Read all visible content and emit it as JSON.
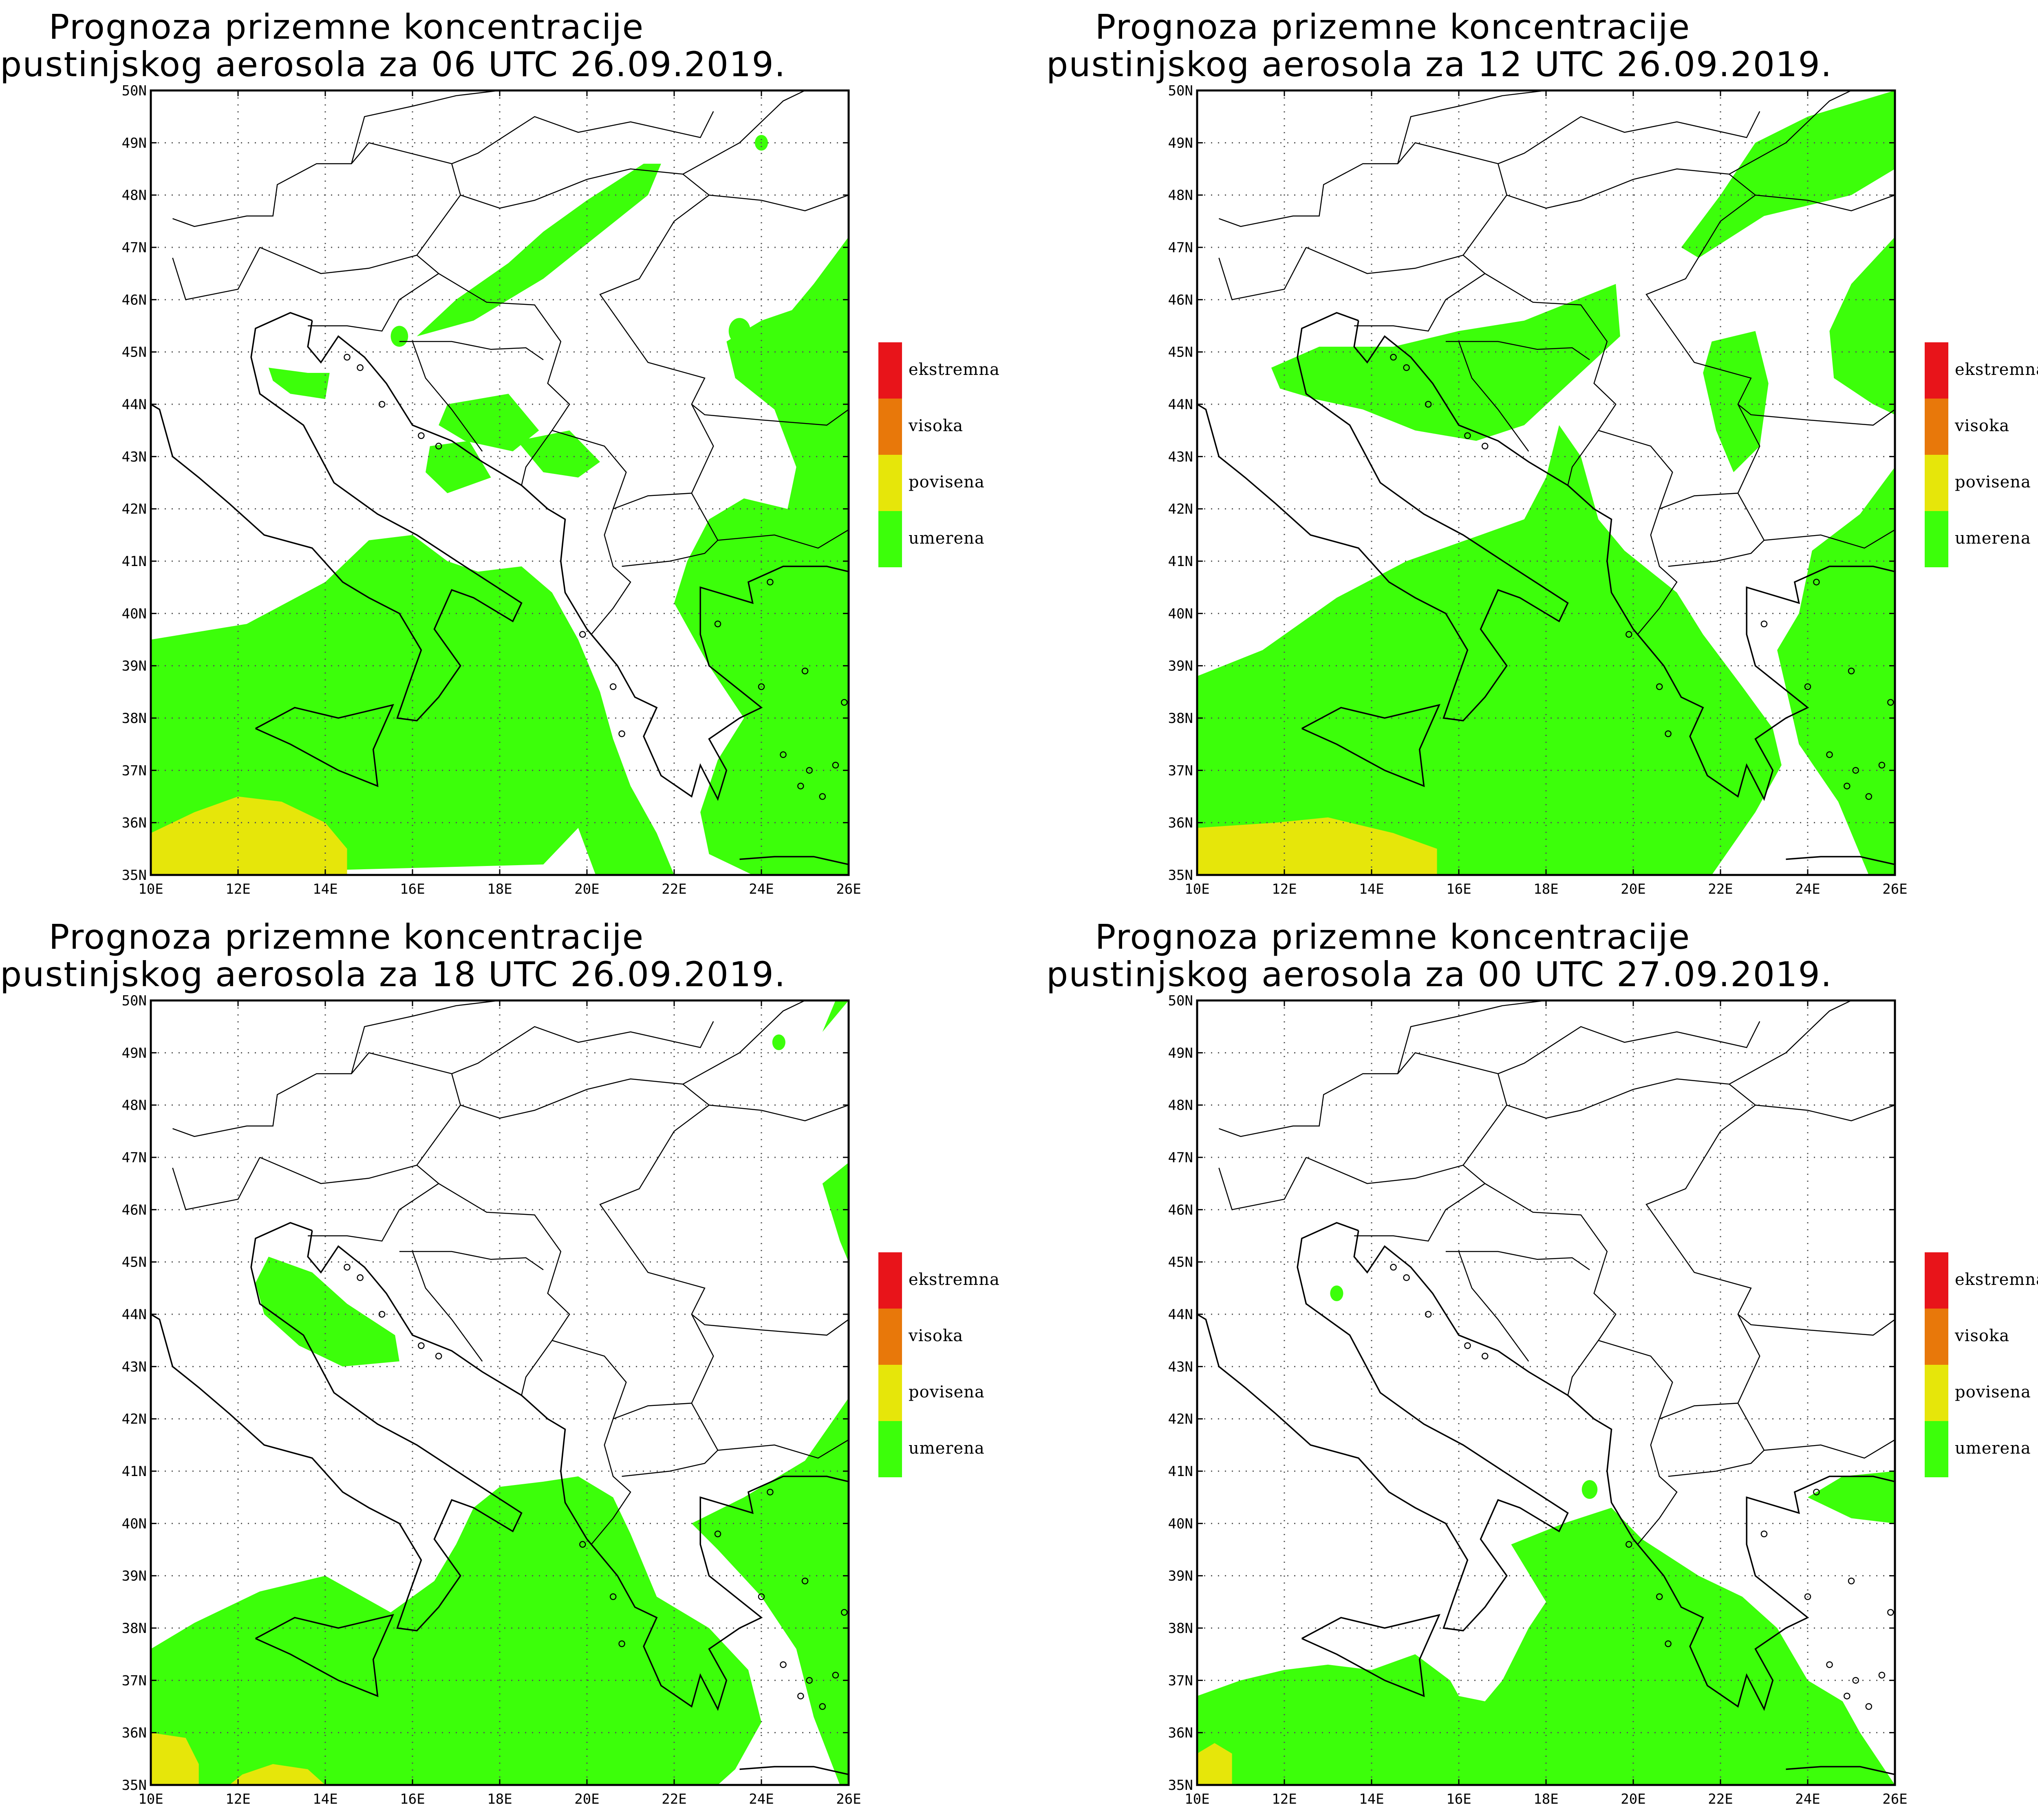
{
  "panels": [
    {
      "id": "p1",
      "title_line1": "Prognoza prizemne koncentracije",
      "title_line2": "pustinjskog aerosola za 06 UTC 26.09.2019."
    },
    {
      "id": "p2",
      "title_line1": "Prognoza prizemne koncentracije",
      "title_line2": "pustinjskog aerosola za 12 UTC 26.09.2019."
    },
    {
      "id": "p3",
      "title_line1": "Prognoza prizemne koncentracije",
      "title_line2": "pustinjskog aerosola za 18 UTC 26.09.2019."
    },
    {
      "id": "p4",
      "title_line1": "Prognoza prizemne koncentracije",
      "title_line2": "pustinjskog aerosola za 00 UTC 27.09.2019."
    }
  ],
  "axes": {
    "lat_labels": [
      "35N",
      "36N",
      "37N",
      "38N",
      "39N",
      "40N",
      "41N",
      "42N",
      "43N",
      "44N",
      "45N",
      "46N",
      "47N",
      "48N",
      "49N",
      "50N"
    ],
    "lon_labels": [
      "10E",
      "12E",
      "14E",
      "16E",
      "18E",
      "20E",
      "22E",
      "24E",
      "26E"
    ],
    "lat_range": [
      35,
      50
    ],
    "lon_range": [
      10,
      26
    ]
  },
  "legend": {
    "items": [
      {
        "label": "ekstremna",
        "color": "#e8141a"
      },
      {
        "label": "visoka",
        "color": "#e8780a"
      },
      {
        "label": "povisena",
        "color": "#e6e60a"
      },
      {
        "label": "umerena",
        "color": "#3cff0a"
      }
    ]
  },
  "colors": {
    "umerena": "#3cff0a",
    "povisena": "#e6e60a",
    "visoka": "#e8780a",
    "ekstremna": "#e8141a",
    "coast": "#000000",
    "grid": "#555555"
  }
}
